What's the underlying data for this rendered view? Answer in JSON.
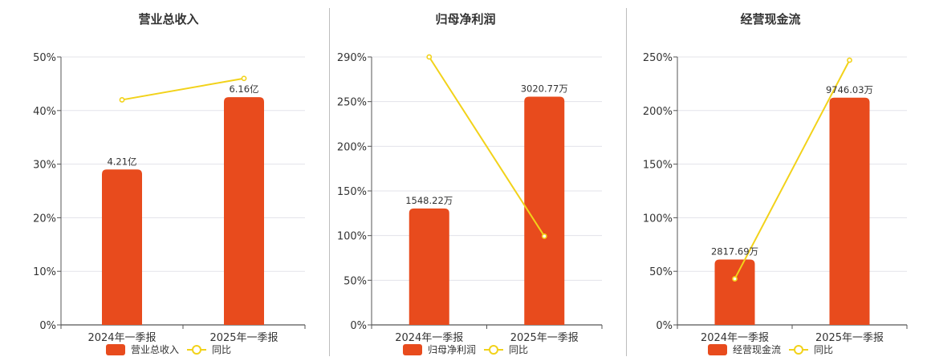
{
  "colors": {
    "bar": "#e84b1d",
    "line": "#f2d21a",
    "grid": "#e3e3ea",
    "axis": "#555555"
  },
  "chart_data": [
    {
      "type": "bar",
      "title": "营业总收入",
      "categories": [
        "2024年一季报",
        "2025年一季报"
      ],
      "ylim": [
        0,
        50
      ],
      "yticks": [
        "0%",
        "10%",
        "20%",
        "30%",
        "40%",
        "50%"
      ],
      "bar_values": [
        29,
        42.5
      ],
      "bar_labels": [
        "4.21亿",
        "6.16亿"
      ],
      "line_values": [
        42,
        46
      ],
      "legend": [
        "营业总收入",
        "同比"
      ]
    },
    {
      "type": "bar",
      "title": "归母净利润",
      "categories": [
        "2024年一季报",
        "2025年一季报"
      ],
      "ylim": [
        0,
        290
      ],
      "yticks": [
        "0%",
        "50%",
        "100%",
        "150%",
        "200%",
        "250%",
        "290%"
      ],
      "bar_values": [
        126,
        247
      ],
      "bar_labels": [
        "1548.22万",
        "3020.77万"
      ],
      "line_values": [
        290,
        96
      ],
      "legend": [
        "归母净利润",
        "同比"
      ]
    },
    {
      "type": "bar",
      "title": "经营现金流",
      "categories": [
        "2024年一季报",
        "2025年一季报"
      ],
      "ylim": [
        0,
        250
      ],
      "yticks": [
        "0%",
        "50%",
        "100%",
        "150%",
        "200%",
        "250%"
      ],
      "bar_values": [
        61,
        212
      ],
      "bar_labels": [
        "2817.69万",
        "9746.03万"
      ],
      "line_values": [
        43,
        247
      ],
      "legend": [
        "经营现金流",
        "同比"
      ]
    }
  ]
}
